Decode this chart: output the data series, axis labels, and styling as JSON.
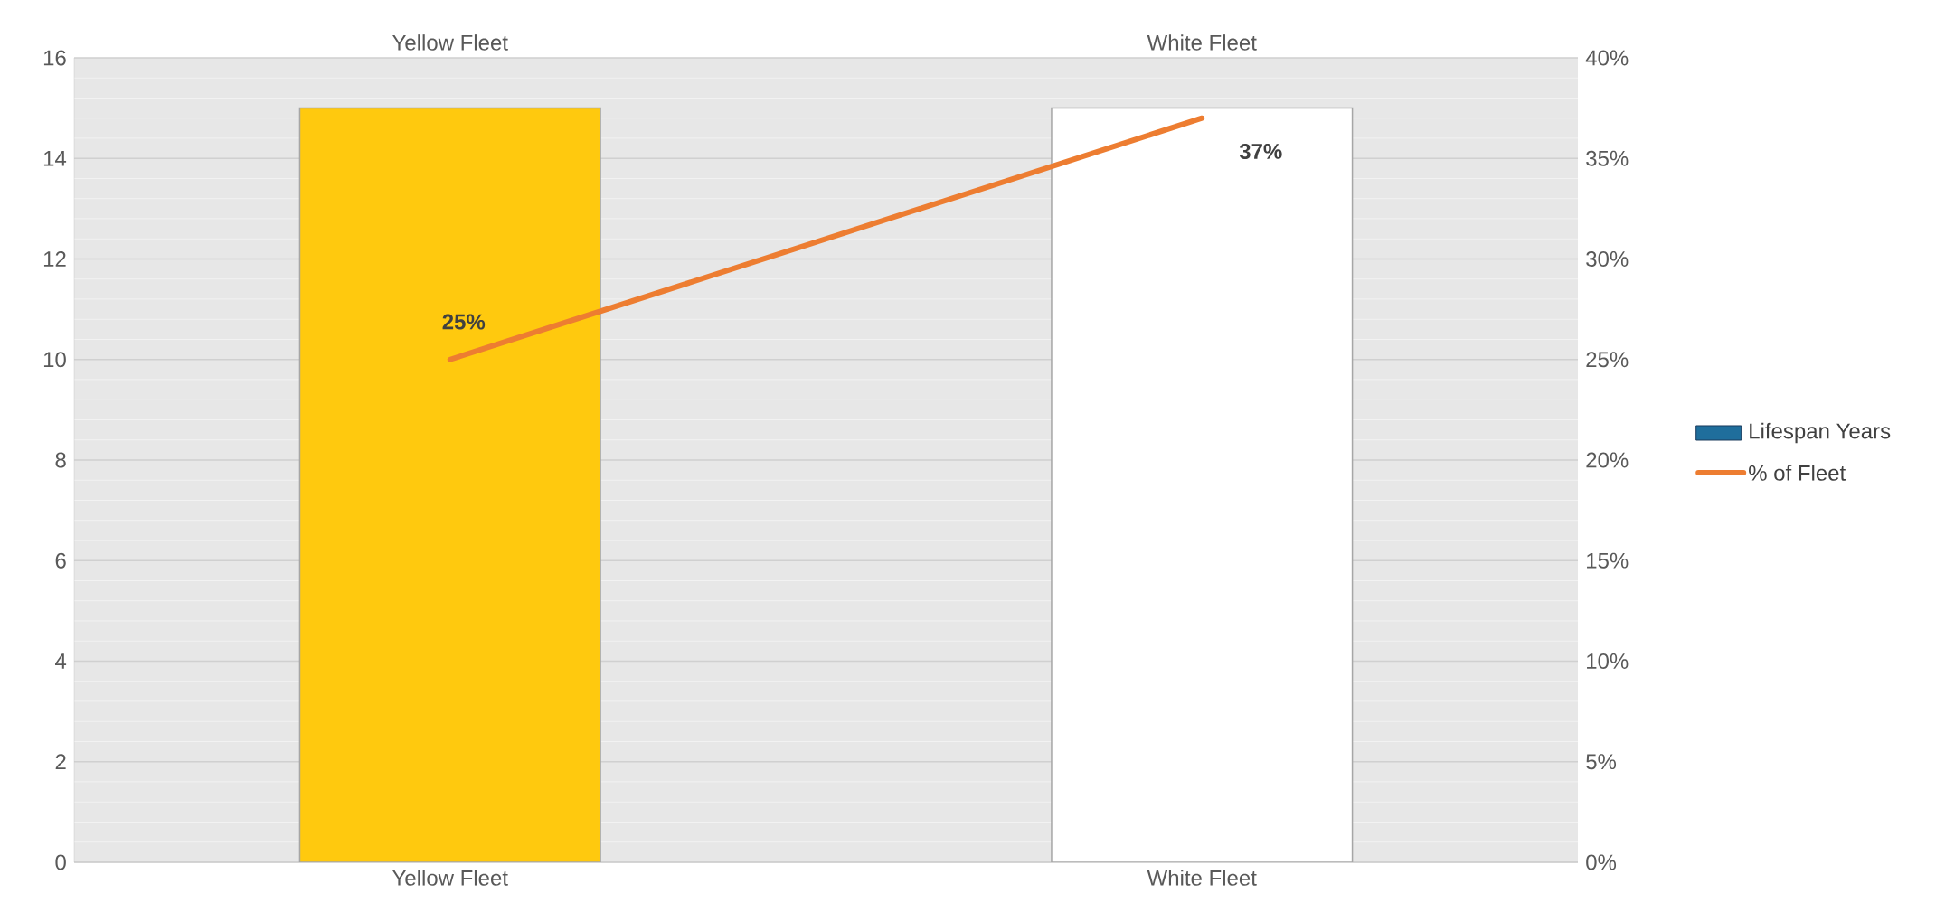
{
  "chart_data": {
    "type": "bar",
    "categories": [
      "Yellow Fleet",
      "White Fleet"
    ],
    "series": [
      {
        "name": "Lifespan Years",
        "color": "#1f6e9c",
        "colors": [
          "#ffc90e",
          "#ffffff"
        ],
        "values": [
          15,
          15
        ]
      },
      {
        "name": "% of Fleet",
        "type": "line",
        "axis": "y2",
        "color": "#ed7d31",
        "values": [
          25,
          37
        ],
        "value_labels": [
          "25%",
          "37%"
        ]
      }
    ],
    "ylim": [
      0,
      16
    ],
    "yticks": [
      0,
      2,
      4,
      6,
      8,
      10,
      12,
      14,
      16
    ],
    "y2lim": [
      0,
      40
    ],
    "y2ticks": [
      {
        "value": 0,
        "label": "0%"
      },
      {
        "value": 5,
        "label": "5%"
      },
      {
        "value": 10,
        "label": "10%"
      },
      {
        "value": 15,
        "label": "15%"
      },
      {
        "value": 20,
        "label": "20%"
      },
      {
        "value": 25,
        "label": "25%"
      },
      {
        "value": 30,
        "label": "30%"
      },
      {
        "value": 35,
        "label": "35%"
      },
      {
        "value": 40,
        "label": "40%"
      }
    ],
    "grid": "y",
    "legend": "right",
    "marker": "none",
    "line_style": "solid"
  }
}
